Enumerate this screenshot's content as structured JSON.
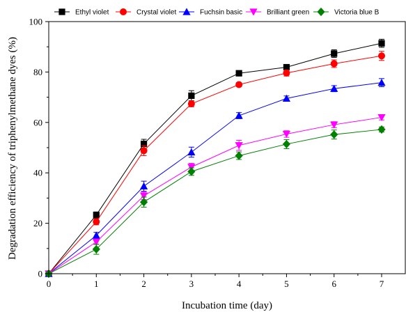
{
  "chart_data": {
    "type": "line",
    "xlabel": "Incubation time (day)",
    "ylabel": "Degradation efficiency of triphenylmethane dyes (%)",
    "xlim": [
      0,
      7
    ],
    "ylim": [
      0,
      100
    ],
    "x_ticks": [
      "0",
      "1",
      "2",
      "3",
      "4",
      "5",
      "6",
      "7"
    ],
    "y_ticks": [
      "0",
      "20",
      "40",
      "60",
      "80",
      "100"
    ],
    "x": [
      0,
      1,
      2,
      3,
      4,
      5,
      6,
      7
    ],
    "grid": false,
    "legend_position": "top",
    "error_bars": true,
    "series": [
      {
        "name": "Ethyl violet",
        "color": "#000000",
        "marker": "square",
        "values": [
          0,
          23.3,
          51.5,
          70.6,
          79.5,
          81.9,
          87.3,
          91.4
        ],
        "errors": [
          0.5,
          1.2,
          1.8,
          2.0,
          1.0,
          1.0,
          1.5,
          1.6
        ]
      },
      {
        "name": "Crystal violet",
        "color": "#ff0000",
        "marker": "circle",
        "values": [
          0,
          20.6,
          48.8,
          67.4,
          75.0,
          79.6,
          83.3,
          86.4
        ],
        "errors": [
          0.5,
          1.2,
          2.0,
          1.2,
          0.8,
          1.2,
          1.5,
          1.8
        ]
      },
      {
        "name": "Fuchsin basic",
        "color": "#0000ff",
        "marker": "triangle-up",
        "values": [
          0,
          15.2,
          34.7,
          48.2,
          62.7,
          69.5,
          73.4,
          75.8
        ],
        "errors": [
          0.5,
          1.2,
          2.0,
          2.0,
          1.2,
          1.0,
          1.2,
          1.6
        ]
      },
      {
        "name": "Brilliant green",
        "color": "#ff00ff",
        "marker": "triangle-down",
        "values": [
          0,
          12.6,
          30.9,
          42.3,
          50.9,
          55.4,
          59.1,
          62.0
        ],
        "errors": [
          0.5,
          1.0,
          1.5,
          1.5,
          2.0,
          1.3,
          1.2,
          1.0
        ]
      },
      {
        "name": "Victoria blue B",
        "color": "#008000",
        "marker": "diamond",
        "values": [
          0,
          9.7,
          28.4,
          40.5,
          46.8,
          51.4,
          55.2,
          57.2
        ],
        "errors": [
          0.5,
          2.0,
          2.0,
          1.5,
          1.5,
          1.8,
          1.8,
          1.0
        ]
      }
    ]
  }
}
